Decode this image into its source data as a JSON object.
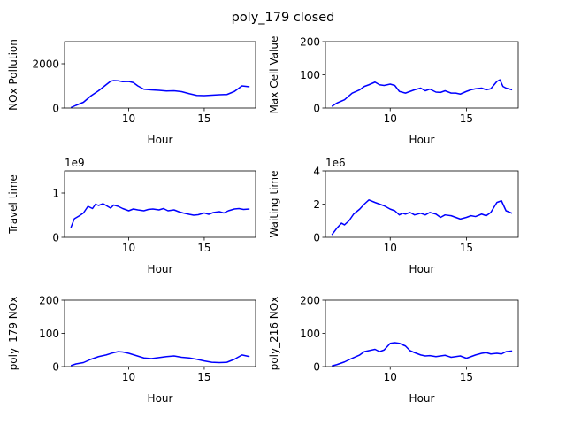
{
  "figure": {
    "title": "poly_179 closed"
  },
  "chart_data": [
    {
      "type": "line",
      "xlabel": "Hour",
      "ylabel": "NOx Pollution",
      "offset_text": "",
      "xlim": [
        5.75,
        18.4
      ],
      "ylim": [
        0,
        3000
      ],
      "xticks": [
        10,
        15
      ],
      "yticks": [
        0,
        2000
      ],
      "series": [
        {
          "color": "#0000ff",
          "x": [
            6.17,
            6.5,
            7,
            7.5,
            8,
            8.5,
            8.8,
            9,
            9.3,
            9.6,
            10,
            10.3,
            10.6,
            11,
            11.5,
            12,
            12.5,
            13,
            13.5,
            14,
            14.5,
            15,
            15.5,
            16,
            16.5,
            17,
            17.5,
            18
          ],
          "y": [
            20,
            120,
            260,
            550,
            780,
            1050,
            1210,
            1240,
            1230,
            1190,
            1200,
            1150,
            1000,
            850,
            820,
            800,
            770,
            780,
            740,
            650,
            570,
            560,
            580,
            600,
            610,
            750,
            1000,
            960
          ]
        }
      ]
    },
    {
      "type": "line",
      "xlabel": "Hour",
      "ylabel": "Max Cell Value",
      "offset_text": "",
      "xlim": [
        5.75,
        18.4
      ],
      "ylim": [
        0,
        200
      ],
      "xticks": [
        10,
        15
      ],
      "yticks": [
        0,
        100,
        200
      ],
      "series": [
        {
          "color": "#0000ff",
          "x": [
            6.17,
            6.5,
            7,
            7.5,
            8,
            8.3,
            8.6,
            9,
            9.3,
            9.6,
            10,
            10.3,
            10.6,
            11,
            11.3,
            11.6,
            12,
            12.3,
            12.6,
            13,
            13.3,
            13.6,
            14,
            14.3,
            14.6,
            15,
            15.3,
            15.6,
            16,
            16.3,
            16.6,
            17,
            17.2,
            17.4,
            17.6,
            18
          ],
          "y": [
            5,
            15,
            25,
            45,
            55,
            65,
            70,
            78,
            70,
            68,
            72,
            68,
            50,
            45,
            50,
            55,
            60,
            52,
            57,
            48,
            47,
            52,
            45,
            45,
            42,
            50,
            55,
            58,
            60,
            55,
            58,
            80,
            85,
            65,
            60,
            55
          ]
        }
      ]
    },
    {
      "type": "line",
      "xlabel": "Hour",
      "ylabel": "Travel time",
      "offset_text": "1e9",
      "xlim": [
        5.75,
        18.4
      ],
      "ylim": [
        0,
        1.5
      ],
      "xticks": [
        10,
        15
      ],
      "yticks": [
        0,
        1
      ],
      "series": [
        {
          "color": "#0000ff",
          "x": [
            6.17,
            6.4,
            6.7,
            7,
            7.3,
            7.6,
            7.8,
            8,
            8.3,
            8.6,
            8.8,
            9,
            9.3,
            9.6,
            10,
            10.3,
            10.6,
            11,
            11.3,
            11.6,
            12,
            12.3,
            12.6,
            13,
            13.3,
            13.6,
            14,
            14.3,
            14.6,
            15,
            15.3,
            15.6,
            16,
            16.3,
            16.6,
            17,
            17.3,
            17.6,
            18
          ],
          "y": [
            0.22,
            0.42,
            0.48,
            0.55,
            0.7,
            0.65,
            0.75,
            0.72,
            0.76,
            0.7,
            0.66,
            0.73,
            0.7,
            0.65,
            0.6,
            0.64,
            0.62,
            0.6,
            0.63,
            0.64,
            0.62,
            0.65,
            0.6,
            0.62,
            0.58,
            0.55,
            0.52,
            0.5,
            0.51,
            0.55,
            0.52,
            0.56,
            0.58,
            0.55,
            0.6,
            0.64,
            0.65,
            0.63,
            0.64
          ]
        }
      ]
    },
    {
      "type": "line",
      "xlabel": "Hour",
      "ylabel": "Waiting time",
      "offset_text": "1e6",
      "xlim": [
        5.75,
        18.4
      ],
      "ylim": [
        0,
        4
      ],
      "xticks": [
        10,
        15
      ],
      "yticks": [
        0,
        2,
        4
      ],
      "series": [
        {
          "color": "#0000ff",
          "x": [
            6.17,
            6.5,
            6.8,
            7,
            7.3,
            7.6,
            8,
            8.3,
            8.6,
            9,
            9.3,
            9.6,
            10,
            10.3,
            10.6,
            10.8,
            11,
            11.3,
            11.6,
            12,
            12.3,
            12.6,
            13,
            13.3,
            13.6,
            14,
            14.3,
            14.6,
            15,
            15.3,
            15.6,
            16,
            16.3,
            16.6,
            17,
            17.3,
            17.6,
            18
          ],
          "y": [
            0.15,
            0.55,
            0.85,
            0.75,
            1.0,
            1.4,
            1.7,
            2.0,
            2.25,
            2.1,
            2.0,
            1.9,
            1.7,
            1.6,
            1.35,
            1.45,
            1.4,
            1.5,
            1.35,
            1.45,
            1.35,
            1.5,
            1.4,
            1.2,
            1.35,
            1.3,
            1.2,
            1.1,
            1.2,
            1.3,
            1.25,
            1.4,
            1.3,
            1.5,
            2.1,
            2.2,
            1.6,
            1.45
          ]
        }
      ]
    },
    {
      "type": "line",
      "xlabel": "Hour",
      "ylabel": "poly_179 NOx",
      "offset_text": "",
      "xlim": [
        5.75,
        18.4
      ],
      "ylim": [
        0,
        200
      ],
      "xticks": [
        10,
        15
      ],
      "yticks": [
        0,
        100,
        200
      ],
      "series": [
        {
          "color": "#0000ff",
          "x": [
            6.17,
            6.5,
            7,
            7.5,
            8,
            8.5,
            9,
            9.3,
            9.6,
            10,
            10.5,
            11,
            11.5,
            12,
            12.5,
            13,
            13.5,
            14,
            14.5,
            15,
            15.5,
            16,
            16.5,
            17,
            17.5,
            18
          ],
          "y": [
            3,
            8,
            12,
            22,
            30,
            35,
            42,
            45,
            44,
            40,
            33,
            26,
            24,
            27,
            30,
            32,
            28,
            26,
            22,
            17,
            13,
            12,
            13,
            22,
            35,
            30
          ]
        }
      ]
    },
    {
      "type": "line",
      "xlabel": "Hour",
      "ylabel": "poly_216 NOx",
      "offset_text": "",
      "xlim": [
        5.75,
        18.4
      ],
      "ylim": [
        0,
        200
      ],
      "xticks": [
        10,
        15
      ],
      "yticks": [
        0,
        100,
        200
      ],
      "series": [
        {
          "color": "#0000ff",
          "x": [
            6.17,
            6.5,
            7,
            7.5,
            8,
            8.3,
            8.6,
            9,
            9.3,
            9.6,
            10,
            10.3,
            10.6,
            11,
            11.3,
            11.6,
            12,
            12.3,
            12.6,
            13,
            13.3,
            13.6,
            14,
            14.3,
            14.6,
            15,
            15.3,
            15.6,
            16,
            16.3,
            16.6,
            17,
            17.3,
            17.6,
            18
          ],
          "y": [
            2,
            6,
            14,
            25,
            35,
            45,
            48,
            52,
            45,
            50,
            70,
            72,
            70,
            62,
            48,
            42,
            35,
            32,
            33,
            30,
            32,
            34,
            28,
            30,
            32,
            25,
            30,
            35,
            40,
            42,
            38,
            40,
            38,
            45,
            47
          ]
        }
      ]
    }
  ]
}
